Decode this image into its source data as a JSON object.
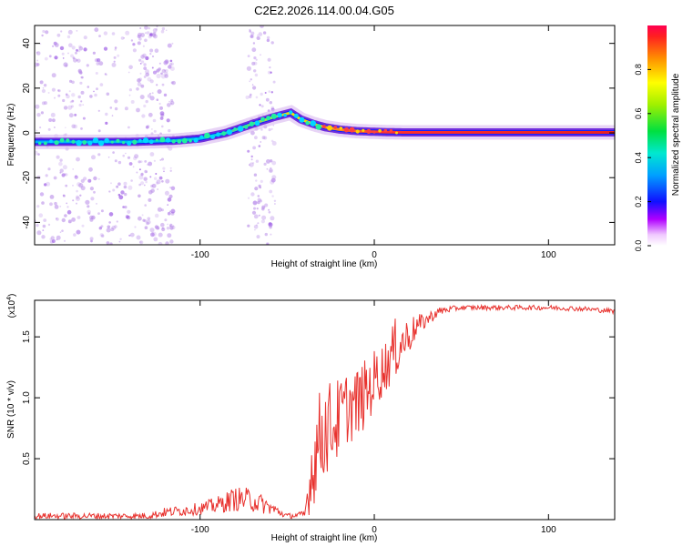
{
  "title": "C2E2.2026.114.00.04.G05",
  "colors": {
    "snr_line": "#e8322e",
    "ridge": "#e83030",
    "scatter": "#b88ce8",
    "frame": "#000000"
  },
  "chart_data": [
    {
      "type": "heatmap",
      "name": "spectrogram",
      "xlabel": "Height of straight line (km)",
      "ylabel": "Frequency (Hz)",
      "xlim": [
        -195,
        138
      ],
      "ylim": [
        -50,
        48
      ],
      "xticks": [
        -100,
        0,
        100
      ],
      "xtick_labels": [
        "-100",
        "0",
        "100"
      ],
      "yticks": [
        -40,
        -20,
        0,
        20,
        40
      ],
      "ytick_labels": [
        "-40",
        "-20",
        "0",
        "20",
        "40"
      ],
      "ridge": {
        "x": [
          -195,
          -170,
          -140,
          -115,
          -100,
          -85,
          -70,
          -58,
          -48,
          -42,
          -35,
          -28,
          -20,
          -10,
          0,
          10,
          20,
          40,
          60,
          80,
          100,
          120,
          138
        ],
        "y": [
          -4,
          -4,
          -4,
          -3.5,
          -2.5,
          0,
          4,
          7,
          9,
          6,
          4,
          2.5,
          1.5,
          0.8,
          0.5,
          0.3,
          0.2,
          0.2,
          0.2,
          0.2,
          0.2,
          0.2,
          0.2
        ]
      },
      "colorbar": {
        "label": "Normalized spectral amplitude",
        "range": [
          0,
          1
        ],
        "ticks": [
          0,
          0.2,
          0.4,
          0.6,
          0.8
        ],
        "tick_labels": [
          "0.0",
          "0.2",
          "0.4",
          "0.6",
          "0.8"
        ]
      }
    },
    {
      "type": "line",
      "name": "snr",
      "xlabel": "Height of straight line (km)",
      "ylabel": "SNR (10 * v/v)",
      "multiplier": "(x10",
      "multiplier_exp": "4",
      "multiplier_close": ")",
      "xlim": [
        -195,
        138
      ],
      "ylim": [
        0,
        1.8
      ],
      "xticks": [
        -100,
        0,
        100
      ],
      "xtick_labels": [
        "-100",
        "0",
        "100"
      ],
      "yticks": [
        0.5,
        1.0,
        1.5
      ],
      "ytick_labels": [
        "0.5",
        "1.0",
        "1.5"
      ],
      "envelope": {
        "x": [
          -195,
          -130,
          -120,
          -100,
          -90,
          -80,
          -70,
          -60,
          -50,
          -40,
          -36,
          -32,
          -28,
          -22,
          -16,
          -10,
          -4,
          0,
          6,
          12,
          18,
          24,
          30,
          36,
          40,
          50,
          60,
          80,
          100,
          120,
          138
        ],
        "mean": [
          0.03,
          0.03,
          0.06,
          0.09,
          0.12,
          0.17,
          0.16,
          0.1,
          0.03,
          0.04,
          0.4,
          0.65,
          0.75,
          0.8,
          0.92,
          0.95,
          1.05,
          1.15,
          1.25,
          1.4,
          1.48,
          1.58,
          1.64,
          1.7,
          1.72,
          1.74,
          1.74,
          1.74,
          1.74,
          1.73,
          1.71
        ],
        "noise": [
          0.025,
          0.025,
          0.04,
          0.05,
          0.07,
          0.1,
          0.1,
          0.06,
          0.02,
          0.03,
          0.35,
          0.4,
          0.4,
          0.35,
          0.3,
          0.3,
          0.28,
          0.25,
          0.22,
          0.25,
          0.18,
          0.1,
          0.06,
          0.04,
          0.03,
          0.02,
          0.02,
          0.02,
          0.02,
          0.02,
          0.02
        ]
      }
    }
  ]
}
